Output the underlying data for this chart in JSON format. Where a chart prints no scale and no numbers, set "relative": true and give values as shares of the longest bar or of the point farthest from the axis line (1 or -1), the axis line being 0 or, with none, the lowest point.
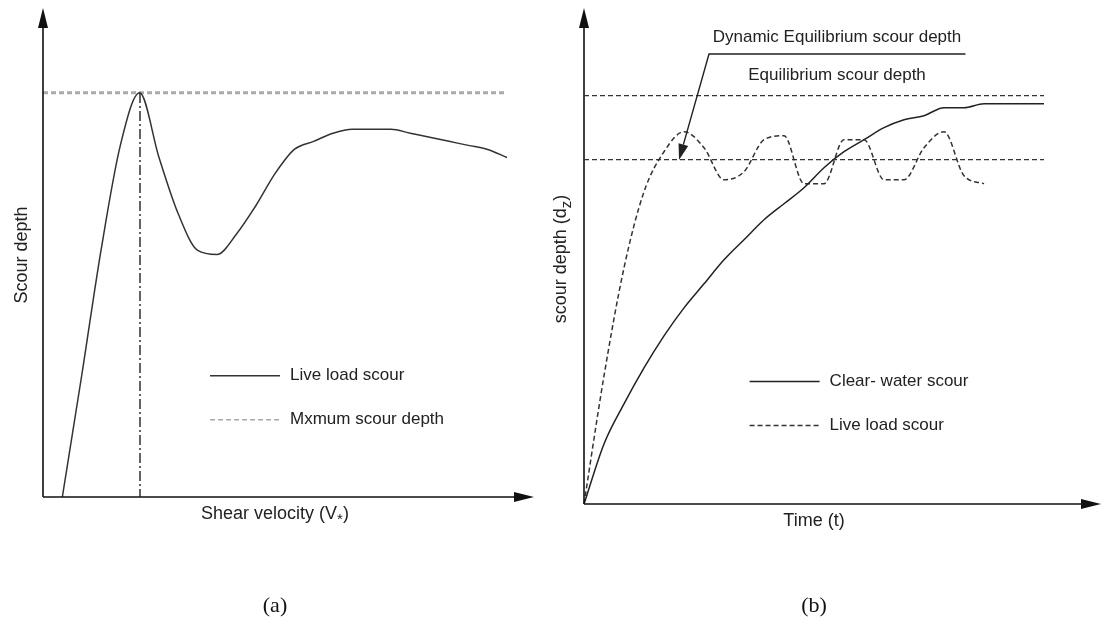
{
  "chart_data": [
    {
      "type": "line",
      "relative": true,
      "xlabel": "Shear velocity (V$_{*}$)",
      "ylabel": "Scour depth",
      "categories": [
        null,
        null,
        null,
        null,
        null,
        null,
        null,
        null,
        null,
        null,
        null,
        null,
        null,
        null,
        null,
        null,
        null,
        null,
        null,
        null,
        null,
        null,
        null,
        null,
        null
      ],
      "series": [
        {
          "name": "Live load scour",
          "color": "#333333",
          "line_style": "solid",
          "values": [
            null,
            0,
            0.3,
            0.61,
            0.87,
            1,
            0.84,
            0.7,
            0.61,
            0.6,
            0.65,
            0.72,
            0.8,
            0.86,
            0.88,
            0.9,
            0.91,
            0.91,
            0.91,
            0.9,
            0.89,
            0.88,
            0.87,
            0.86,
            0.84
          ]
        },
        {
          "name": "Mxmum scour depth",
          "color": "#aaaaaa",
          "line_style": "dashed",
          "values": [
            1,
            1,
            1,
            1,
            1,
            1,
            1,
            1,
            1,
            1,
            1,
            1,
            1,
            1,
            1,
            1,
            1,
            1,
            1,
            1,
            1,
            1,
            1,
            1,
            1
          ]
        }
      ],
      "legend": "bottom right",
      "marker": "none",
      "annotations": [
        "(a)"
      ]
    },
    {
      "type": "line",
      "relative": true,
      "xlabel": "Time (t)",
      "ylabel": "scour depth (d$_{z}$)",
      "categories": [
        null,
        null,
        null,
        null,
        null,
        null,
        null,
        null,
        null,
        null,
        null,
        null,
        null,
        null,
        null,
        null,
        null,
        null,
        null,
        null,
        null,
        null,
        null,
        null
      ],
      "series": [
        {
          "name": "Clear- water scour",
          "color": "#222222",
          "line_style": "solid",
          "values": [
            0,
            0.15,
            0.25,
            0.34,
            0.42,
            0.49,
            0.55,
            0.61,
            0.66,
            0.71,
            0.75,
            0.79,
            0.84,
            0.88,
            0.91,
            0.94,
            0.96,
            0.97,
            0.99,
            0.99,
            1,
            1,
            1,
            1
          ]
        },
        {
          "name": "Live load scour",
          "color": "#333333",
          "line_style": "dashed",
          "values": [
            0,
            0.32,
            0.59,
            0.78,
            0.88,
            0.93,
            0.89,
            0.81,
            0.83,
            0.91,
            0.92,
            0.8,
            0.8,
            0.91,
            0.91,
            0.81,
            0.81,
            0.89,
            0.93,
            0.82,
            0.8,
            null,
            null,
            null
          ]
        }
      ],
      "ref_lines": [
        {
          "axis": "y",
          "value": 1.02,
          "label": "Equilibrium scour depth",
          "line_style": "dashed",
          "color": "#333333"
        },
        {
          "axis": "y",
          "value": 0.86,
          "line_style": "dashed",
          "color": "#333333"
        }
      ],
      "legend": "bottom right",
      "marker": "none",
      "annotations": [
        "(b)",
        "Dynamic Equilibrium scour depth"
      ]
    }
  ]
}
